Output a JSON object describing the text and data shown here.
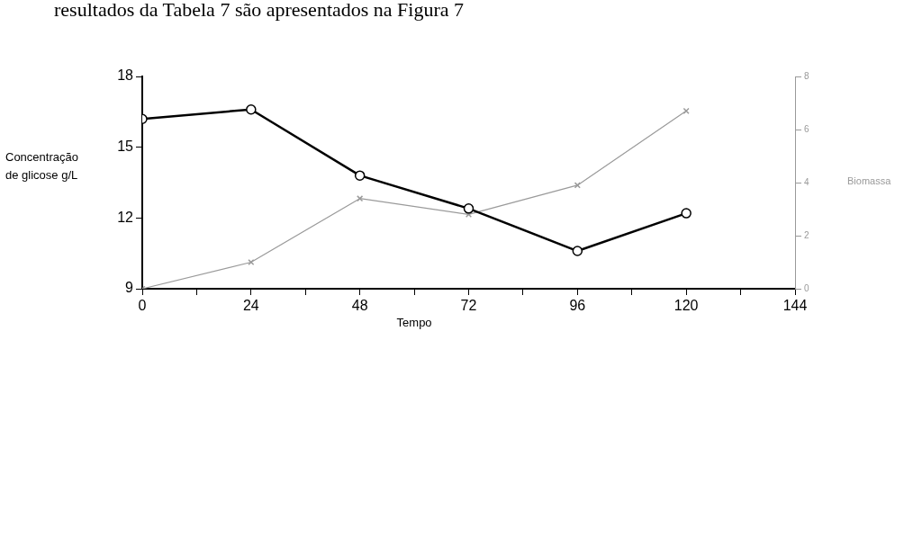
{
  "chart_data": {
    "type": "line",
    "xlabel": "Tempo",
    "ylabel": "Concentração\nde glicose g/L",
    "y2label": "Biomassa",
    "annotations": [
      "resultados da Tabela 7 são apresentados na Figura 7"
    ],
    "x": [
      0,
      24,
      48,
      72,
      96,
      120
    ],
    "series": [
      {
        "color": "#000000",
        "values": [
          16.2,
          16.6,
          13.8,
          12.4,
          10.6,
          12.2
        ],
        "marker": "circle"
      },
      {
        "color": "#9a9a9a",
        "values": [
          0,
          1.0,
          3.4,
          2.8,
          3.9,
          6.7
        ],
        "axis": "y2",
        "marker": "cross"
      }
    ],
    "xlim": [
      0,
      144
    ],
    "xticks": [
      0,
      {
        "value": 12,
        "label": null
      },
      24,
      {
        "value": 36,
        "label": null
      },
      48,
      {
        "value": 60,
        "label": null
      },
      72,
      {
        "value": 84,
        "label": null
      },
      96,
      {
        "value": 108,
        "label": null
      },
      120,
      {
        "value": 132,
        "label": null
      },
      144
    ],
    "ylim": [
      9,
      18
    ],
    "yticks": [
      9,
      15,
      12,
      18
    ],
    "y2lim": [
      0,
      8
    ],
    "y2ticks": [
      0,
      2,
      4,
      6,
      8
    ],
    "grid": false,
    "legend": false
  }
}
